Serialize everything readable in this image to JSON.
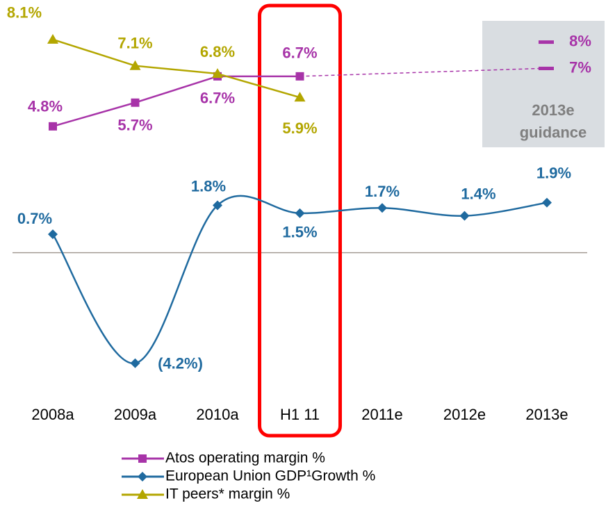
{
  "chart_data": {
    "type": "line",
    "categories": [
      "2008a",
      "2009a",
      "2010a",
      "H1 11",
      "2011e",
      "2012e",
      "2013e"
    ],
    "series": [
      {
        "name": "Atos operating margin %",
        "color": "#a733a8",
        "marker": "square",
        "values": [
          4.8,
          5.7,
          6.7,
          6.7,
          null,
          null,
          null
        ],
        "value_labels": [
          "4.8%",
          "5.7%",
          "6.7%",
          "6.7%",
          null,
          null,
          null
        ]
      },
      {
        "name": "European Union GDP¹Growth %",
        "color": "#1f6a9f",
        "marker": "diamond",
        "smooth": true,
        "values": [
          0.7,
          -4.2,
          1.8,
          1.5,
          1.7,
          1.4,
          1.9
        ],
        "value_labels": [
          "0.7%",
          "(4.2%)",
          "1.8%",
          "1.5%",
          "1.7%",
          "1.4%",
          "1.9%"
        ]
      },
      {
        "name": "IT peers* margin %",
        "color": "#b3a600",
        "marker": "triangle",
        "values": [
          8.1,
          7.1,
          6.8,
          5.9,
          null,
          null,
          null
        ],
        "value_labels": [
          "8.1%",
          "7.1%",
          "6.8%",
          "5.9%",
          null,
          null,
          null
        ]
      }
    ],
    "guidance": {
      "label": [
        "2013e",
        "guidance"
      ],
      "values": [
        8,
        7
      ],
      "value_labels": [
        "8%",
        "7%"
      ],
      "color": "#a733a8"
    },
    "highlight": "H1 11",
    "ylim": [
      -5.5,
      9.6
    ],
    "grid": false
  }
}
